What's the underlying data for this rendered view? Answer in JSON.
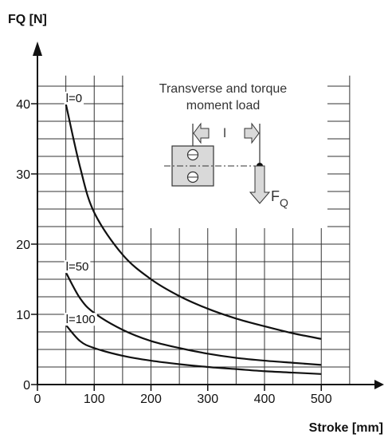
{
  "chart_data": {
    "type": "line",
    "ylabel": "FQ [N]",
    "xlabel": "Stroke [mm]",
    "xlim": [
      0,
      550
    ],
    "ylim": [
      0,
      45
    ],
    "x_ticks": [
      0,
      100,
      200,
      300,
      400,
      500
    ],
    "y_ticks": [
      0,
      10,
      20,
      30,
      40
    ],
    "grid": true,
    "series": [
      {
        "name": "l=0",
        "x": [
          50,
          75,
          100,
          150,
          200,
          250,
          300,
          350,
          400,
          450,
          500
        ],
        "y": [
          40,
          31,
          24.5,
          18.5,
          15,
          12.6,
          10.8,
          9.4,
          8.3,
          7.3,
          6.5
        ]
      },
      {
        "name": "l=50",
        "x": [
          50,
          75,
          100,
          150,
          200,
          250,
          300,
          350,
          400,
          450,
          500
        ],
        "y": [
          16,
          12.3,
          10.2,
          7.8,
          6.2,
          5.2,
          4.4,
          3.8,
          3.4,
          3.1,
          2.8
        ]
      },
      {
        "name": "l=100",
        "x": [
          50,
          75,
          100,
          150,
          200,
          250,
          300,
          350,
          400,
          450,
          500
        ],
        "y": [
          8.5,
          6.2,
          5.2,
          4.1,
          3.4,
          2.9,
          2.5,
          2.2,
          1.9,
          1.7,
          1.5
        ]
      }
    ],
    "inset": {
      "title_line1": "Transverse and torque",
      "title_line2": "moment load",
      "distance_label": "l",
      "force_label": "F",
      "force_subscript": "Q"
    }
  }
}
